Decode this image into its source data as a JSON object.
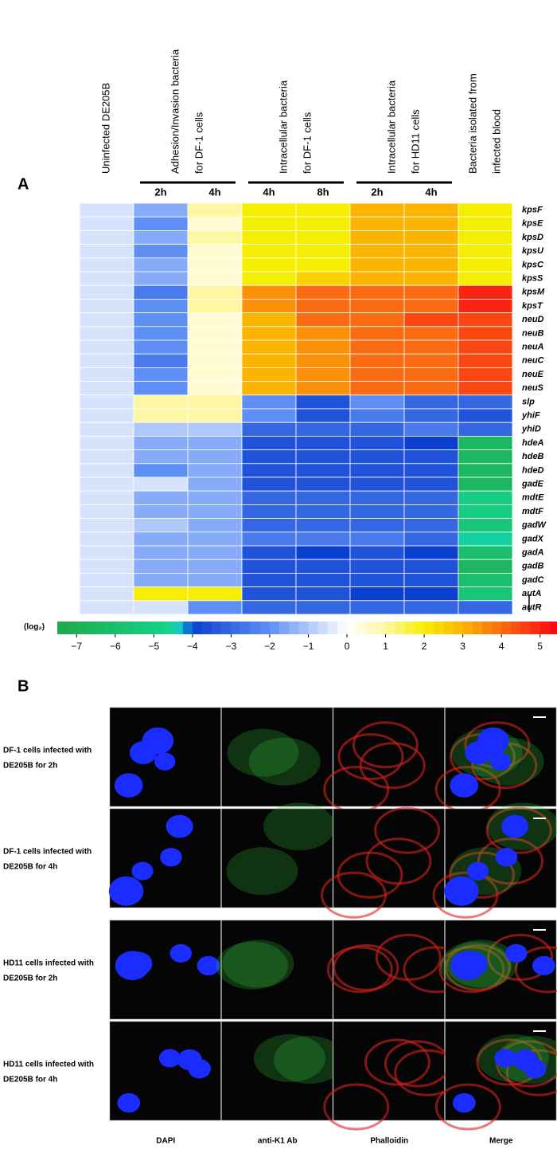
{
  "chart_data": {
    "type": "heatmap",
    "panel_label": "A",
    "groups": [
      {
        "lines": [
          "Uninfected DE205B"
        ],
        "categories": [
          null
        ]
      },
      {
        "lines": [
          "Adhesion/Invasion bacteria",
          "for DF-1 cells"
        ],
        "categories": [
          "2h",
          "4h"
        ]
      },
      {
        "lines": [
          "Intracellular bacteria",
          "for DF-1 cells"
        ],
        "categories": [
          "4h",
          "8h"
        ]
      },
      {
        "lines": [
          "Intracellular bacteria",
          "for HD11 cells"
        ],
        "categories": [
          "2h",
          "4h"
        ]
      },
      {
        "lines": [
          "Bacteria isolated from",
          "infected blood"
        ],
        "categories": [
          null
        ]
      }
    ],
    "rows": [
      "kpsF",
      "kpsE",
      "kpsD",
      "kpsU",
      "kpsC",
      "kpsS",
      "kpsM",
      "kpsT",
      "neuD",
      "neuB",
      "neuA",
      "neuC",
      "neuE",
      "neuS",
      "slp",
      "yhiF",
      "yhiD",
      "hdeA",
      "hdeB",
      "hdeD",
      "gadE",
      "mdtE",
      "mdtF",
      "gadW",
      "gadX",
      "gadA",
      "gadB",
      "gadC",
      "autA",
      "autR"
    ],
    "values": [
      [
        -0.5,
        -1.5,
        1,
        2,
        2,
        3,
        3,
        2
      ],
      [
        -0.5,
        -2,
        0.5,
        2,
        2,
        3,
        3,
        2
      ],
      [
        -0.5,
        -1.5,
        1,
        2,
        2,
        3,
        3,
        2
      ],
      [
        -0.5,
        -2,
        0.5,
        2,
        2,
        3,
        3,
        2
      ],
      [
        -0.5,
        -1.5,
        0.5,
        2,
        2,
        3,
        3,
        2
      ],
      [
        -0.5,
        -1.5,
        0.5,
        2,
        2.5,
        3,
        3,
        2
      ],
      [
        -0.5,
        -2.5,
        1,
        3.5,
        4,
        4,
        4,
        5
      ],
      [
        -0.5,
        -2,
        1,
        3.5,
        4,
        4,
        4,
        5
      ],
      [
        -0.5,
        -2,
        0.5,
        3,
        4,
        4,
        4.5,
        4.5
      ],
      [
        -0.5,
        -2,
        0.5,
        3,
        3.5,
        4,
        4,
        4.5
      ],
      [
        -0.5,
        -2,
        0.5,
        3,
        3.5,
        4,
        4,
        4.5
      ],
      [
        -0.5,
        -2.5,
        0.5,
        3,
        3.5,
        4,
        4,
        4.5
      ],
      [
        -0.5,
        -2,
        0.5,
        3,
        3.5,
        4,
        4,
        4.5
      ],
      [
        -0.5,
        -2,
        0.5,
        3,
        3.5,
        4,
        4,
        4.5
      ],
      [
        -0.5,
        1,
        1,
        -2,
        -3.5,
        -2,
        -3,
        -3
      ],
      [
        -0.5,
        1,
        1,
        -2,
        -3.5,
        -2.5,
        -3,
        -3.5
      ],
      [
        -0.5,
        -1,
        -1,
        -3,
        -3,
        -3,
        -2.5,
        -3
      ],
      [
        -0.5,
        -1.5,
        -1.5,
        -3.5,
        -3.5,
        -3.5,
        -4,
        -6.5
      ],
      [
        -0.5,
        -1.5,
        -1.5,
        -3.5,
        -3.5,
        -3.5,
        -3.5,
        -6.5
      ],
      [
        -0.5,
        -2,
        -1.5,
        -3.5,
        -3.5,
        -3.5,
        -3.5,
        -6.5
      ],
      [
        -0.5,
        -0.5,
        -1.5,
        -3.5,
        -3.5,
        -3.5,
        -3.5,
        -6.5
      ],
      [
        -0.5,
        -1.5,
        -1.5,
        -3,
        -3,
        -3,
        -3,
        -5
      ],
      [
        -0.5,
        -1.5,
        -1.5,
        -3,
        -3,
        -3,
        -3,
        -5
      ],
      [
        -0.5,
        -1,
        -1.5,
        -3,
        -3,
        -3,
        -3,
        -5.5
      ],
      [
        -0.5,
        -1.5,
        -1.5,
        -2.5,
        -2.5,
        -2.5,
        -3,
        -4.5
      ],
      [
        -0.5,
        -1.5,
        -1.5,
        -3.5,
        -4,
        -3.5,
        -4,
        -6
      ],
      [
        -0.5,
        -1.5,
        -1.5,
        -3.5,
        -3.5,
        -3.5,
        -3.5,
        -6.5
      ],
      [
        -0.5,
        -1.5,
        -1.5,
        -3.5,
        -3.5,
        -3.5,
        -3.5,
        -6
      ],
      [
        -0.5,
        2,
        2,
        -3.5,
        -3.5,
        -4,
        -4,
        -5.5
      ],
      [
        -0.5,
        -0.5,
        -2,
        -3,
        -3,
        -3,
        -3,
        -3
      ]
    ],
    "colorbar_label": "(log₂)",
    "clim": [
      -7.5,
      5.5
    ],
    "cticks": [
      {
        "value": -7,
        "label": "−7"
      },
      {
        "value": -6,
        "label": "−6"
      },
      {
        "value": -5,
        "label": "−5"
      },
      {
        "value": -4,
        "label": "−4"
      },
      {
        "value": -3,
        "label": "−3"
      },
      {
        "value": -2,
        "label": "−2"
      },
      {
        "value": -1,
        "label": "−1"
      },
      0,
      1,
      2,
      3,
      4,
      5
    ],
    "colorscale": [
      {
        "value": -7.5,
        "color": "#1fa94a"
      },
      {
        "value": -4.6,
        "color": "#16d38a"
      },
      {
        "value": -4.3,
        "color": "#10c8cc"
      },
      {
        "value": -4,
        "color": "#0b3fd0"
      },
      {
        "value": -2,
        "color": "#5f8ff5"
      },
      {
        "value": 0,
        "color": "#ffffff"
      },
      {
        "value": 1,
        "color": "#fdf7a4"
      },
      {
        "value": 2,
        "color": "#f6ee00"
      },
      {
        "value": 3,
        "color": "#fbb400"
      },
      {
        "value": 4,
        "color": "#fb6b12"
      },
      {
        "value": 5.5,
        "color": "#f80012"
      }
    ]
  },
  "panel_b": {
    "panel_label": "B",
    "rows": [
      {
        "lines": [
          "DF-1 cells infected with",
          "DE205B for 2h"
        ]
      },
      {
        "lines": [
          "DF-1 cells infected with",
          "DE205B for 4h"
        ]
      },
      {
        "lines": [
          "HD11 cells infected with",
          "DE205B for 2h"
        ]
      },
      {
        "lines": [
          "HD11 cells infected with",
          "DE205B for 4h"
        ]
      }
    ],
    "columns": [
      "DAPI",
      "anti-K1 Ab",
      "Phalloidin",
      "Merge"
    ]
  }
}
